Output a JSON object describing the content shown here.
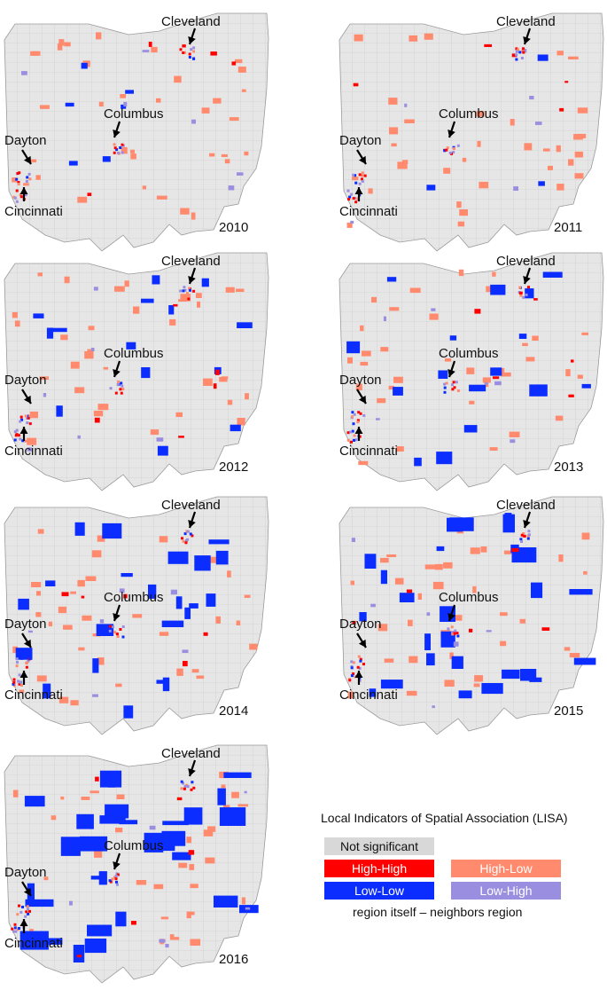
{
  "cities": {
    "cleveland": "Cleveland",
    "columbus": "Columbus",
    "dayton": "Dayton",
    "cincinnati": "Cincinnati"
  },
  "panels": [
    {
      "year": "2010"
    },
    {
      "year": "2011"
    },
    {
      "year": "2012"
    },
    {
      "year": "2013"
    },
    {
      "year": "2014"
    },
    {
      "year": "2015"
    },
    {
      "year": "2016"
    }
  ],
  "legend": {
    "title": "Local Indicators of Spatial Association (LISA)",
    "not_significant": "Not significant",
    "high_high": "High-High",
    "high_low": "High-Low",
    "low_low": "Low-Low",
    "low_high": "Low-High",
    "note": "region itself – neighbors region"
  },
  "colors": {
    "not_significant": "#e3e3e3",
    "high_high": "#ff0000",
    "high_low": "#ff8a6e",
    "low_low": "#0b2dff",
    "low_high": "#9a8ee0"
  }
}
